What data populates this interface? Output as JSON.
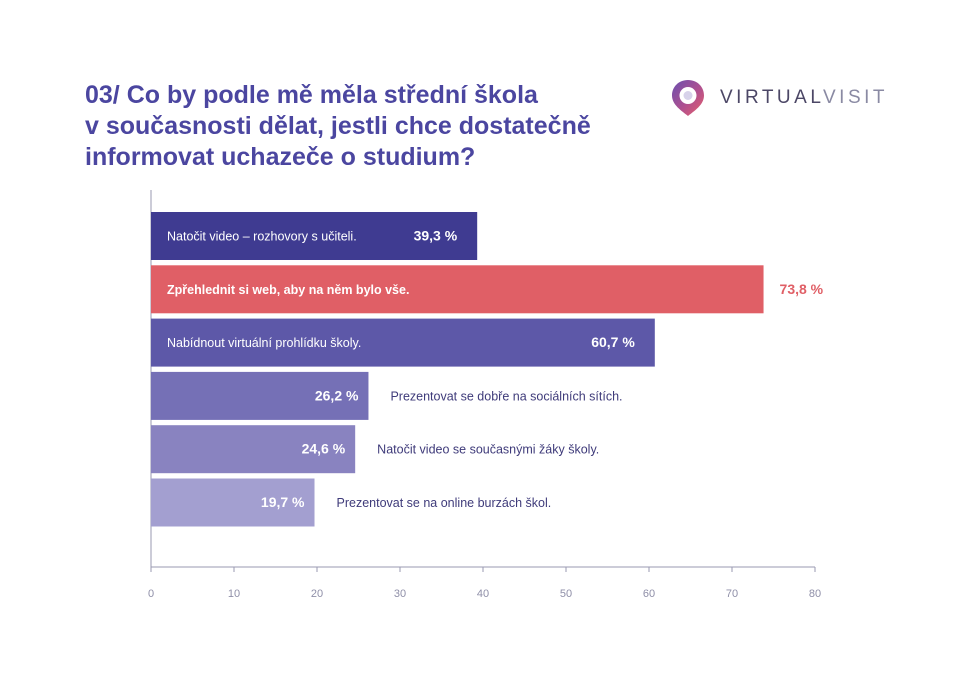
{
  "title": {
    "line1": "03/ Co by podle mě měla střední škola",
    "line2": "v současnosti dělat, jestli chce dostatečně",
    "line3": "informovat uchazeče o studium?"
  },
  "logo": {
    "icon": "location-pin-logo-icon",
    "part1": "VIRTUAL",
    "part2": "VISIT"
  },
  "colors": {
    "title": "#4b46a0",
    "axis": "#9a9ab2",
    "highlight": "#e05f66"
  },
  "chart_data": {
    "type": "bar",
    "orientation": "horizontal",
    "categories": [
      "Natočit video – rozhovory s učiteli.",
      "Zpřehlednit si web, aby na něm bylo vše.",
      "Nabídnout virtuální prohlídku školy.",
      "Prezentovat se dobře na sociálních sítích.",
      "Natočit video se současnými žáky školy.",
      "Prezentovat se na online burzách škol."
    ],
    "values": [
      39.3,
      73.8,
      60.7,
      26.2,
      24.6,
      19.7
    ],
    "value_labels": [
      "39,3 %",
      "73,8 %",
      "60,7 %",
      "26,2 %",
      "24,6 %",
      "19,7 %"
    ],
    "colors": [
      "#3f3b91",
      "#e05f66",
      "#5d58a8",
      "#7570b6",
      "#8983c0",
      "#a39fd0"
    ],
    "highlight_index": 1,
    "xlim": [
      0,
      80
    ],
    "xticks": [
      0,
      10,
      20,
      30,
      40,
      50,
      60,
      70,
      80
    ],
    "xtick_labels": [
      "0",
      "10",
      "20",
      "30",
      "40",
      "50",
      "60",
      "70",
      "80"
    ],
    "grid": false
  }
}
